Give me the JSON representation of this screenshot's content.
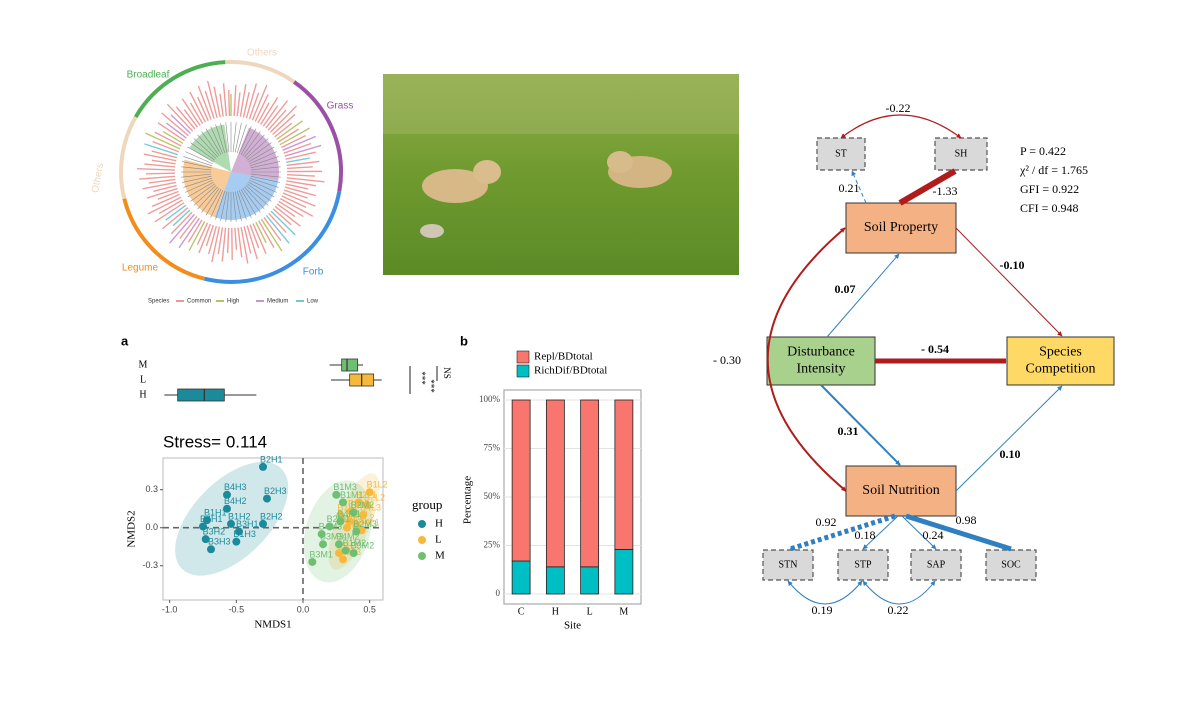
{
  "tree": {
    "segments": [
      {
        "label": "Others",
        "color": "#efd7bd"
      },
      {
        "label": "Grass",
        "color": "#9b4fa5"
      },
      {
        "label": "Forb",
        "color": "#3a8fe3"
      },
      {
        "label": "Legume",
        "color": "#f28c1a"
      },
      {
        "label": "Others",
        "color": "#efd7bd"
      },
      {
        "label": "Broadleaf",
        "color": "#4caf50"
      }
    ],
    "legend_title": "Species",
    "legend": [
      {
        "label": "Common",
        "color": "#e8736f"
      },
      {
        "label": "High",
        "color": "#9aae2c"
      },
      {
        "label": "Medium",
        "color": "#b56fc0"
      },
      {
        "label": "Low",
        "color": "#3fb5c8"
      }
    ]
  },
  "chart_data": [
    {
      "type": "scatter",
      "panel_label": "a",
      "title": "Stress= 0.114",
      "x_label": "NMDS1",
      "y_label": "NMDS2",
      "xlim": [
        -1.05,
        0.6
      ],
      "ylim": [
        -0.57,
        0.55
      ],
      "xticks": [
        {
          "value": -1,
          "label": "-1.0"
        },
        -0.5,
        {
          "value": 0,
          "label": "0.0"
        },
        0.5
      ],
      "yticks": [
        -0.3,
        {
          "value": 0,
          "label": "0.0"
        },
        0.3
      ],
      "legend_title": "group",
      "series": [
        {
          "name": "H",
          "color": "#1b8a9a",
          "labels": [
            "B2H1",
            "B4H3",
            "B2H3",
            "B4H2",
            "B1H1",
            "B1H2",
            "B2H2",
            "B4H1",
            "B3H1",
            "B3H2",
            "B1H3",
            "B3H3"
          ],
          "x": [
            -0.3,
            -0.57,
            -0.27,
            -0.57,
            -0.72,
            -0.54,
            -0.3,
            -0.75,
            -0.48,
            -0.73,
            -0.5,
            -0.69
          ],
          "y": [
            0.48,
            0.26,
            0.23,
            0.15,
            0.06,
            0.03,
            0.03,
            0.01,
            -0.03,
            -0.09,
            -0.11,
            -0.17
          ]
        },
        {
          "name": "L",
          "color": "#f6b93b",
          "labels": [
            "B1L2",
            "B2L1",
            "B4L3",
            "B2L3",
            "B3L1",
            "B4L2",
            "B1L1",
            "B3L2",
            "B1L3",
            "B2L2",
            "B4L1",
            "B3L3"
          ],
          "x": [
            0.5,
            0.42,
            0.45,
            0.35,
            0.33,
            0.4,
            0.28,
            0.36,
            0.27,
            0.48,
            0.44,
            0.3
          ],
          "y": [
            0.28,
            0.2,
            0.1,
            0.05,
            0.0,
            0.02,
            0.1,
            0.13,
            -0.2,
            0.18,
            -0.02,
            -0.25
          ]
        },
        {
          "name": "M",
          "color": "#6fbf73",
          "labels": [
            "B1M3",
            "B1M1",
            "B2M2",
            "B4M1",
            "B2M1",
            "B4M3",
            "B3M3",
            "B4M2",
            "B1M2",
            "B2M3",
            "B3M2",
            "B3M1"
          ],
          "x": [
            0.25,
            0.3,
            0.38,
            0.28,
            0.2,
            0.14,
            0.15,
            0.27,
            0.32,
            0.4,
            0.38,
            0.07
          ],
          "y": [
            0.26,
            0.2,
            0.12,
            0.05,
            0.01,
            -0.05,
            -0.13,
            -0.13,
            -0.18,
            -0.03,
            -0.2,
            -0.27
          ]
        }
      ],
      "boxplot": {
        "categories": [
          "M",
          "L",
          "H"
        ],
        "colors": [
          "#6fbf73",
          "#f6b93b",
          "#1b8a9a"
        ],
        "stats": [
          {
            "min": 0.2,
            "q1": 0.29,
            "median": 0.33,
            "q3": 0.41,
            "max": 0.45
          },
          {
            "min": 0.21,
            "q1": 0.35,
            "median": 0.44,
            "q3": 0.53,
            "max": 0.59
          },
          {
            "min": -1.04,
            "q1": -0.94,
            "median": -0.74,
            "q3": -0.59,
            "max": -0.35
          }
        ],
        "significance": [
          "NS",
          "***",
          "***"
        ]
      }
    },
    {
      "type": "stacked_bar",
      "panel_label": "b",
      "x_label": "Site",
      "y_label": "Percentage",
      "categories": [
        "C",
        "H",
        "L",
        "M"
      ],
      "series": [
        {
          "name": "Repl/BDtotal",
          "color": "#f8766d",
          "values": [
            83,
            86,
            86,
            77
          ]
        },
        {
          "name": "RichDif/BDtotal",
          "color": "#00bfc4",
          "values": [
            17,
            14,
            14,
            23
          ]
        }
      ],
      "ylim": [
        0,
        100
      ],
      "yticks": [
        0,
        {
          "value": 25,
          "label": "25%"
        },
        {
          "value": 50,
          "label": "50%"
        },
        {
          "value": 75,
          "label": "75%"
        },
        {
          "value": 100,
          "label": "100%"
        }
      ],
      "grid": true
    }
  ],
  "sem": {
    "nodes": [
      {
        "label": [
          "ST"
        ],
        "color": "#d9d9d9"
      },
      {
        "label": [
          "SH"
        ],
        "color": "#d9d9d9"
      },
      {
        "label": [
          "Soil Property"
        ],
        "color": "#f4b183"
      },
      {
        "label": [
          "Disturbance",
          "Intensity"
        ],
        "color": "#a9d18e"
      },
      {
        "label": [
          "Species",
          "Competition"
        ],
        "color": "#ffd966"
      },
      {
        "label": [
          "Soil Nutrition"
        ],
        "color": "#f4b183"
      },
      {
        "label": [
          "STN"
        ],
        "color": "#d9d9d9"
      },
      {
        "label": [
          "STP"
        ],
        "color": "#d9d9d9"
      },
      {
        "label": [
          "SAP"
        ],
        "color": "#d9d9d9"
      },
      {
        "label": [
          "SOC"
        ],
        "color": "#d9d9d9"
      }
    ],
    "edges": [
      {
        "label": "-0.22"
      },
      {
        "label": "0.21"
      },
      {
        "label": "-1.33"
      },
      {
        "label": "0.07"
      },
      {
        "label": "-0.10"
      },
      {
        "label": "- 0.30"
      },
      {
        "label": "- 0.54"
      },
      {
        "label": "0.31"
      },
      {
        "label": "0.10"
      },
      {
        "label": "0.92"
      },
      {
        "label": "0.18"
      },
      {
        "label": "0.24"
      },
      {
        "label": "0.98"
      },
      {
        "label": "0.19"
      },
      {
        "label": "0.22"
      }
    ],
    "fit": [
      "P = 0.422",
      "χ² / df = 1.765",
      "GFI = 0.922",
      "CFI = 0.948"
    ]
  }
}
